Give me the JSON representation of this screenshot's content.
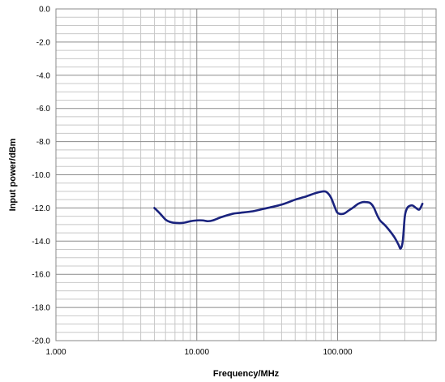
{
  "chart_data": {
    "type": "line",
    "title": "",
    "xlabel": "Frequency/MHz",
    "ylabel": "Input power/dBm",
    "x_scale": "log",
    "xlim": [
      1,
      500
    ],
    "ylim": [
      -20,
      0
    ],
    "x_ticks": [
      1,
      10,
      100
    ],
    "x_tick_labels": [
      "1.000",
      "10.000",
      "100.000"
    ],
    "y_ticks": [
      0,
      -2,
      -4,
      -6,
      -8,
      -10,
      -12,
      -14,
      -16,
      -18,
      -20
    ],
    "y_tick_labels": [
      "0.0",
      "-2.0",
      "-4.0",
      "-6.0",
      "-8.0",
      "-10.0",
      "-12.0",
      "-14.0",
      "-16.0",
      "-18.0",
      "-20.0"
    ],
    "grid": true,
    "line_color": "#1a237e",
    "series": [
      {
        "x": [
          5,
          5.5,
          6,
          6.5,
          7,
          8,
          9,
          10,
          11,
          12,
          13,
          15,
          18,
          20,
          25,
          30,
          40,
          50,
          60,
          70,
          80,
          85,
          90,
          95,
          100,
          110,
          120,
          130,
          140,
          150,
          160,
          170,
          180,
          190,
          200,
          220,
          250,
          270,
          280,
          290,
          300,
          310,
          320,
          340,
          360,
          380,
          400
        ],
        "y": [
          -12.0,
          -12.35,
          -12.7,
          -12.85,
          -12.9,
          -12.9,
          -12.8,
          -12.75,
          -12.75,
          -12.8,
          -12.75,
          -12.55,
          -12.35,
          -12.3,
          -12.2,
          -12.05,
          -11.8,
          -11.5,
          -11.3,
          -11.1,
          -11.0,
          -11.1,
          -11.4,
          -11.9,
          -12.3,
          -12.35,
          -12.15,
          -11.95,
          -11.75,
          -11.65,
          -11.65,
          -11.7,
          -11.95,
          -12.4,
          -12.75,
          -13.1,
          -13.7,
          -14.2,
          -14.45,
          -14.0,
          -12.5,
          -12.05,
          -11.9,
          -11.85,
          -12.0,
          -12.1,
          -11.75
        ]
      }
    ]
  }
}
